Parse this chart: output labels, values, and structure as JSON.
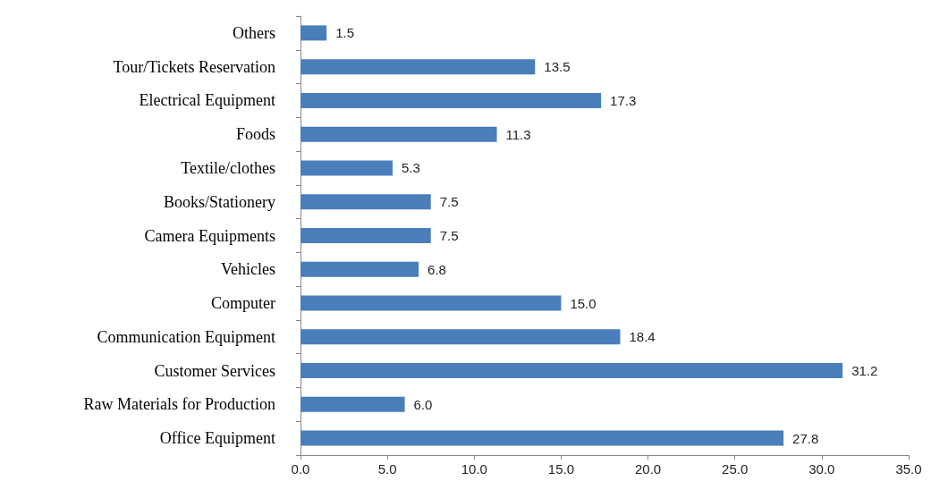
{
  "chart_data": {
    "type": "bar",
    "orientation": "horizontal",
    "categories": [
      "Others",
      "Tour/Tickets Reservation",
      "Electrical Equipment",
      "Foods",
      "Textile/clothes",
      "Books/Stationery",
      "Camera Equipments",
      "Vehicles",
      "Computer",
      "Communication Equipment",
      "Customer Services",
      "Raw Materials for Production",
      "Office Equipment"
    ],
    "values": [
      1.5,
      13.5,
      17.3,
      11.3,
      5.3,
      7.5,
      7.5,
      6.8,
      15.0,
      18.4,
      31.2,
      6.0,
      27.8
    ],
    "value_labels": [
      "1.5",
      "13.5",
      "17.3",
      "11.3",
      "5.3",
      "7.5",
      "7.5",
      "6.8",
      "15.0",
      "18.4",
      "31.2",
      "6.0",
      "27.8"
    ],
    "color": "#4a7ebb",
    "xlim": [
      0,
      35
    ],
    "xticks": [
      {
        "value": 0,
        "label": "0.0"
      },
      {
        "value": 5,
        "label": "5.0"
      },
      {
        "value": 10,
        "label": "10.0"
      },
      {
        "value": 15,
        "label": "15.0"
      },
      {
        "value": 20,
        "label": "20.0"
      },
      {
        "value": 25,
        "label": "25.0"
      },
      {
        "value": 30,
        "label": "30.0"
      },
      {
        "value": 35,
        "label": "35.0"
      }
    ],
    "grid": false
  }
}
